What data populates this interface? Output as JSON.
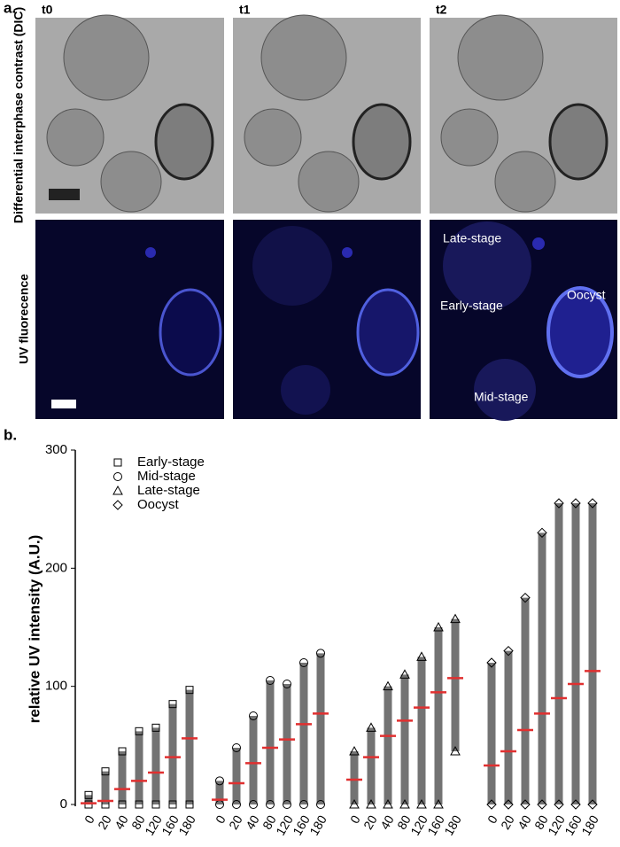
{
  "figure_a": {
    "panel_label": "a.",
    "times": [
      "t0",
      "t1",
      "t2"
    ],
    "row_labels": [
      "Differential interphase contrast (DIC)",
      "UV fluorecence"
    ],
    "annotations": [
      "Late-stage",
      "Early-stage",
      "Oocyst",
      "Mid-stage"
    ]
  },
  "chart_data": {
    "type": "dotplot",
    "panel_label": "b.",
    "y_label": "relative UV intensity (A.U.)",
    "categories": [
      "0",
      "20",
      "40",
      "80",
      "120",
      "160",
      "180"
    ],
    "ylim": [
      0,
      300
    ],
    "yticks": [
      0,
      100,
      200,
      300
    ],
    "mean_color": "#e03030",
    "series": [
      {
        "name": "Early-stage",
        "marker": "square",
        "color": "#000000",
        "values": [
          1,
          3,
          13,
          20,
          27,
          40,
          56
        ],
        "minima": [
          0,
          0,
          0,
          0,
          0,
          0,
          0
        ],
        "maxima": [
          8,
          28,
          45,
          62,
          65,
          85,
          97
        ]
      },
      {
        "name": "Mid-stage",
        "marker": "circle",
        "color": "#000000",
        "values": [
          4,
          18,
          35,
          48,
          55,
          68,
          77
        ],
        "minima": [
          0,
          0,
          0,
          0,
          0,
          0,
          0
        ],
        "maxima": [
          20,
          48,
          75,
          105,
          102,
          120,
          128
        ]
      },
      {
        "name": "Late-stage",
        "marker": "triangle",
        "color": "#000000",
        "values": [
          21,
          40,
          58,
          71,
          82,
          95,
          107
        ],
        "minima": [
          0,
          0,
          0,
          0,
          0,
          0,
          45
        ],
        "maxima": [
          45,
          65,
          100,
          110,
          125,
          150,
          157
        ]
      },
      {
        "name": "Oocyst",
        "marker": "diamond",
        "color": "#000000",
        "values": [
          33,
          45,
          63,
          77,
          90,
          102,
          113
        ],
        "minima": [
          0,
          0,
          0,
          0,
          0,
          0,
          0
        ],
        "maxima": [
          120,
          130,
          175,
          230,
          255,
          255,
          255
        ]
      }
    ]
  }
}
